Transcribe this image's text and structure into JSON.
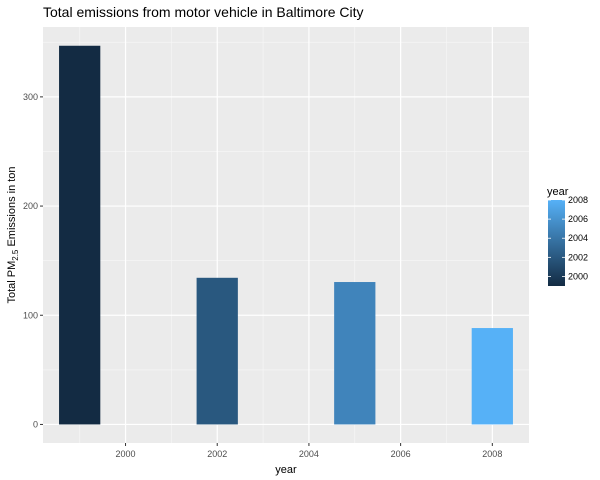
{
  "chart_data": {
    "type": "bar",
    "title": "Total emissions from motor vehicle in Baltimore City",
    "xlabel": "year",
    "ylabel_prefix": "Total PM",
    "ylabel_subscript": "2.5",
    "ylabel_suffix": " Emissions in ton",
    "x": [
      1999,
      2002,
      2005,
      2008
    ],
    "values": [
      346.82,
      134.31,
      130.43,
      88.28
    ],
    "xlim": [
      1998.2,
      2008.8
    ],
    "ylim": [
      -17,
      364
    ],
    "x_ticks": [
      2000,
      2002,
      2004,
      2006,
      2008
    ],
    "y_ticks": [
      0,
      100,
      200,
      300
    ],
    "grid": true,
    "fill_scale": {
      "title": "year",
      "breaks": [
        2008,
        2006,
        2004,
        2002,
        2000
      ],
      "domain": [
        1999,
        2008
      ],
      "low_color": "#132B43",
      "high_color": "#56B1F7"
    },
    "legend_position": "right",
    "panel_color": "#EBEBEB",
    "grid_color": "#FFFFFF"
  }
}
